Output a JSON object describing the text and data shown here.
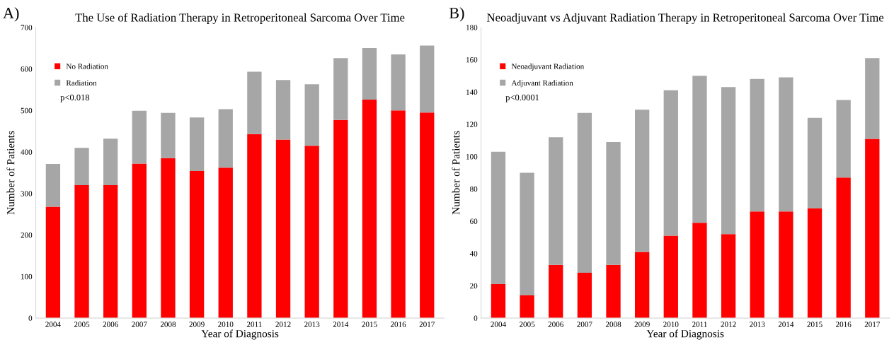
{
  "chart_data": [
    {
      "type": "bar",
      "stacked": true,
      "title": "The Use of Radiation Therapy in Retroperitoneal Sarcoma Over Time",
      "xlabel": "Year of Diagnosis",
      "ylabel": "Number of Patients",
      "categories": [
        "2004",
        "2005",
        "2006",
        "2007",
        "2008",
        "2009",
        "2010",
        "2011",
        "2012",
        "2013",
        "2014",
        "2015",
        "2016",
        "2017"
      ],
      "series": [
        {
          "name": "No Radiation",
          "color": "#ff0000",
          "values": [
            268,
            320,
            320,
            372,
            385,
            354,
            362,
            443,
            430,
            415,
            477,
            526,
            500,
            495
          ]
        },
        {
          "name": "Radiation",
          "color": "#a6a6a6",
          "values": [
            103,
            90,
            112,
            127,
            109,
            129,
            141,
            150,
            143,
            148,
            149,
            124,
            135,
            161
          ]
        }
      ],
      "ylim": [
        0,
        700
      ],
      "yticks": [
        0,
        100,
        200,
        300,
        400,
        500,
        600,
        700
      ],
      "grid": false,
      "legend": "top left",
      "annotations": [
        "A)",
        "p<0.018"
      ]
    },
    {
      "type": "bar",
      "stacked": true,
      "title": "Neoadjuvant vs Adjuvant Radiation Therapy in Retroperitoneal Sarcoma Over Time",
      "xlabel": "Year of Diagnosis",
      "ylabel": "Number of Patients",
      "categories": [
        "2004",
        "2005",
        "2006",
        "2007",
        "2008",
        "2009",
        "2010",
        "2011",
        "2012",
        "2013",
        "2014",
        "2015",
        "2016",
        "2017"
      ],
      "series": [
        {
          "name": "Neoadjuvant Radiation",
          "color": "#ff0000",
          "values": [
            21,
            14,
            33,
            28,
            33,
            41,
            51,
            59,
            52,
            66,
            66,
            68,
            87,
            111
          ]
        },
        {
          "name": "Adjuvant Radiation",
          "color": "#a6a6a6",
          "values": [
            82,
            76,
            79,
            99,
            76,
            88,
            90,
            91,
            91,
            82,
            83,
            56,
            48,
            50
          ]
        }
      ],
      "ylim": [
        0,
        180
      ],
      "yticks": [
        0,
        20,
        40,
        60,
        80,
        100,
        120,
        140,
        160,
        180
      ],
      "grid": false,
      "legend": "top left",
      "annotations": [
        "B)",
        "p<0.0001"
      ]
    }
  ]
}
